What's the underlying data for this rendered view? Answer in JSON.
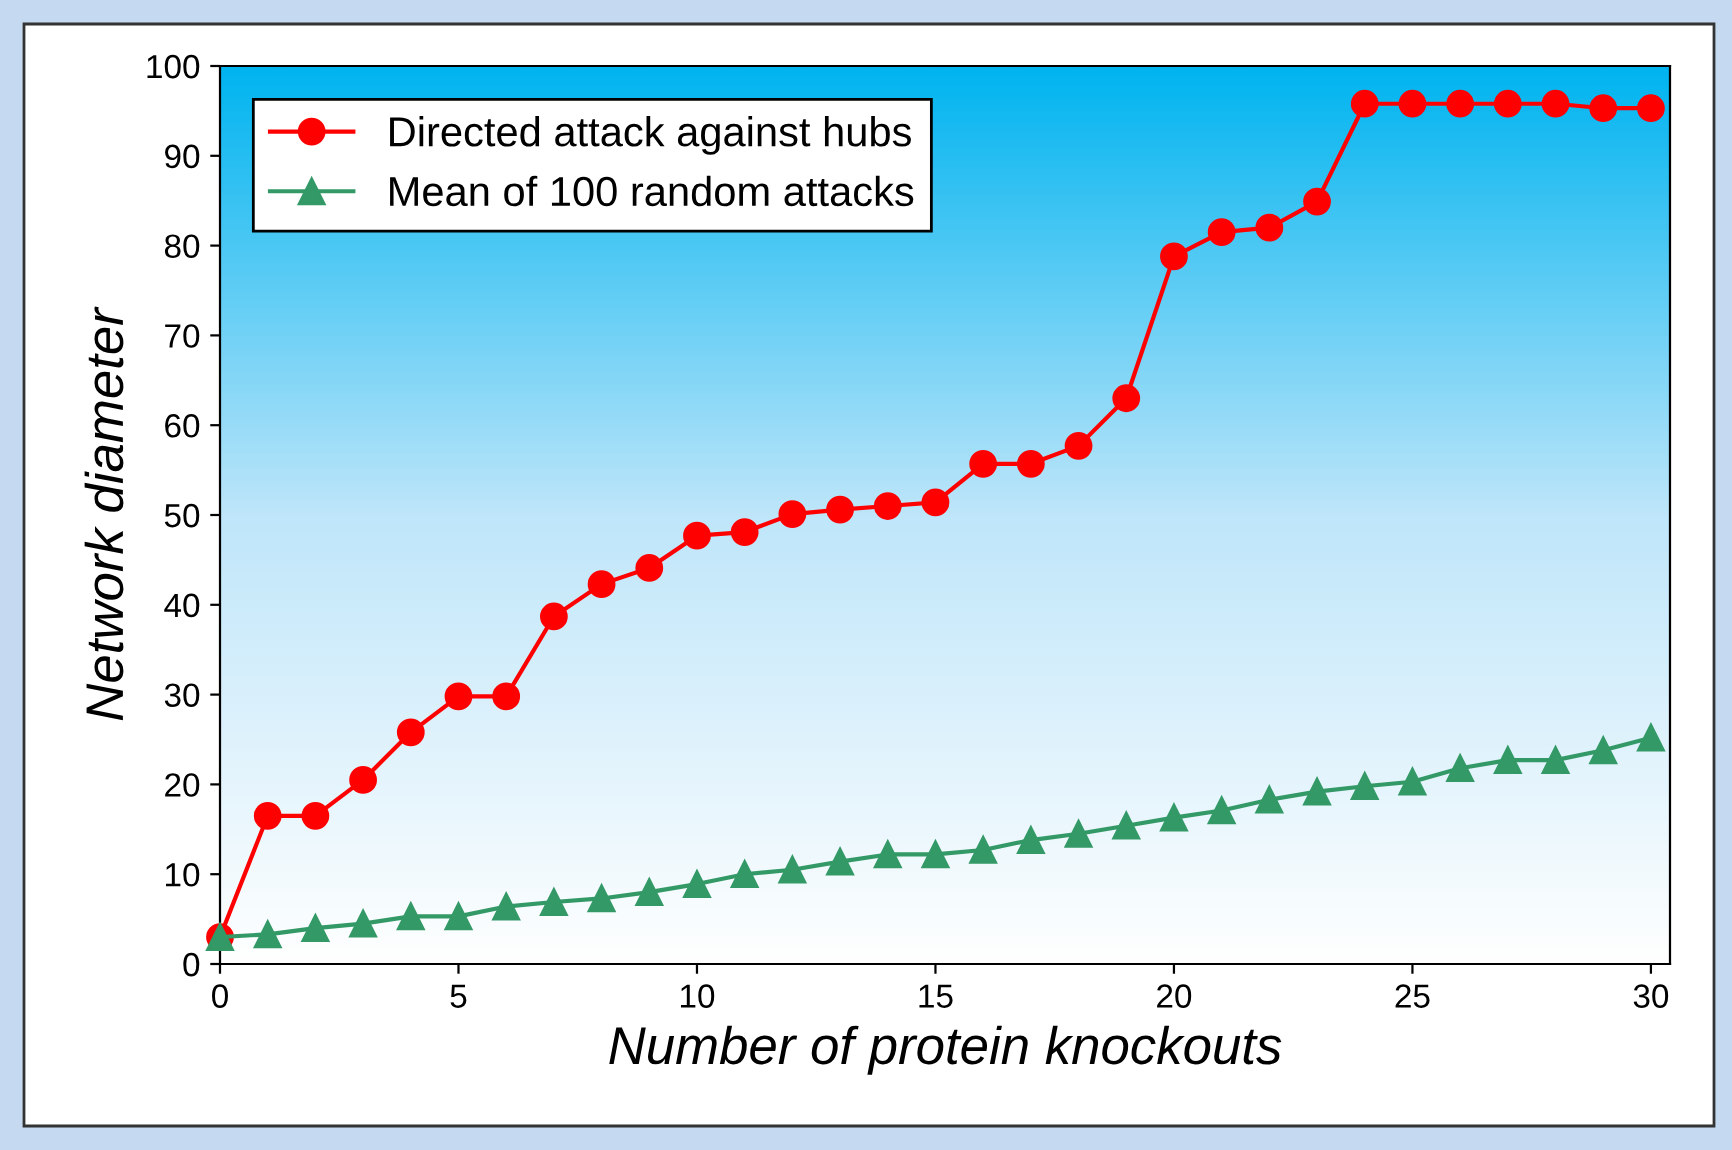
{
  "chart_data": {
    "type": "line",
    "xlabel": "Number of protein knockouts",
    "ylabel": "Network diameter",
    "x": [
      0,
      1,
      2,
      3,
      4,
      5,
      6,
      7,
      8,
      9,
      10,
      11,
      12,
      13,
      14,
      15,
      16,
      17,
      18,
      19,
      20,
      21,
      22,
      23,
      24,
      25,
      26,
      27,
      28,
      29,
      30
    ],
    "series": [
      {
        "name": "Directed attack against hubs",
        "color": "#ff0000",
        "marker": "circle",
        "values": [
          3,
          16.5,
          16.5,
          20.5,
          25.8,
          29.8,
          29.8,
          38.7,
          42.3,
          44.1,
          47.7,
          48.1,
          50.1,
          50.6,
          51,
          51.4,
          55.7,
          55.7,
          57.7,
          63,
          78.8,
          81.5,
          82,
          84.9,
          95.8,
          95.8,
          95.8,
          95.8,
          95.8,
          95.3,
          95.3
        ]
      },
      {
        "name": "Mean of 100 random attacks",
        "color": "#339966",
        "marker": "triangle",
        "values": [
          3,
          3.3,
          4,
          4.5,
          5.3,
          5.3,
          6.4,
          6.9,
          7.3,
          8,
          8.9,
          10,
          10.5,
          11.4,
          12.2,
          12.2,
          12.7,
          13.8,
          14.5,
          15.4,
          16.3,
          17.1,
          18.3,
          19.2,
          19.8,
          20.3,
          21.8,
          22.7,
          22.7,
          23.8,
          25.2
        ]
      }
    ],
    "xlim": [
      0,
      30.4
    ],
    "xticks": [
      0,
      5,
      10,
      15,
      20,
      25,
      30
    ],
    "ylim": [
      0,
      100
    ],
    "yticks": [
      0,
      10,
      20,
      30,
      40,
      50,
      60,
      70,
      80,
      90,
      100
    ],
    "grid": false,
    "legend": "top left",
    "line_style": "solid"
  }
}
